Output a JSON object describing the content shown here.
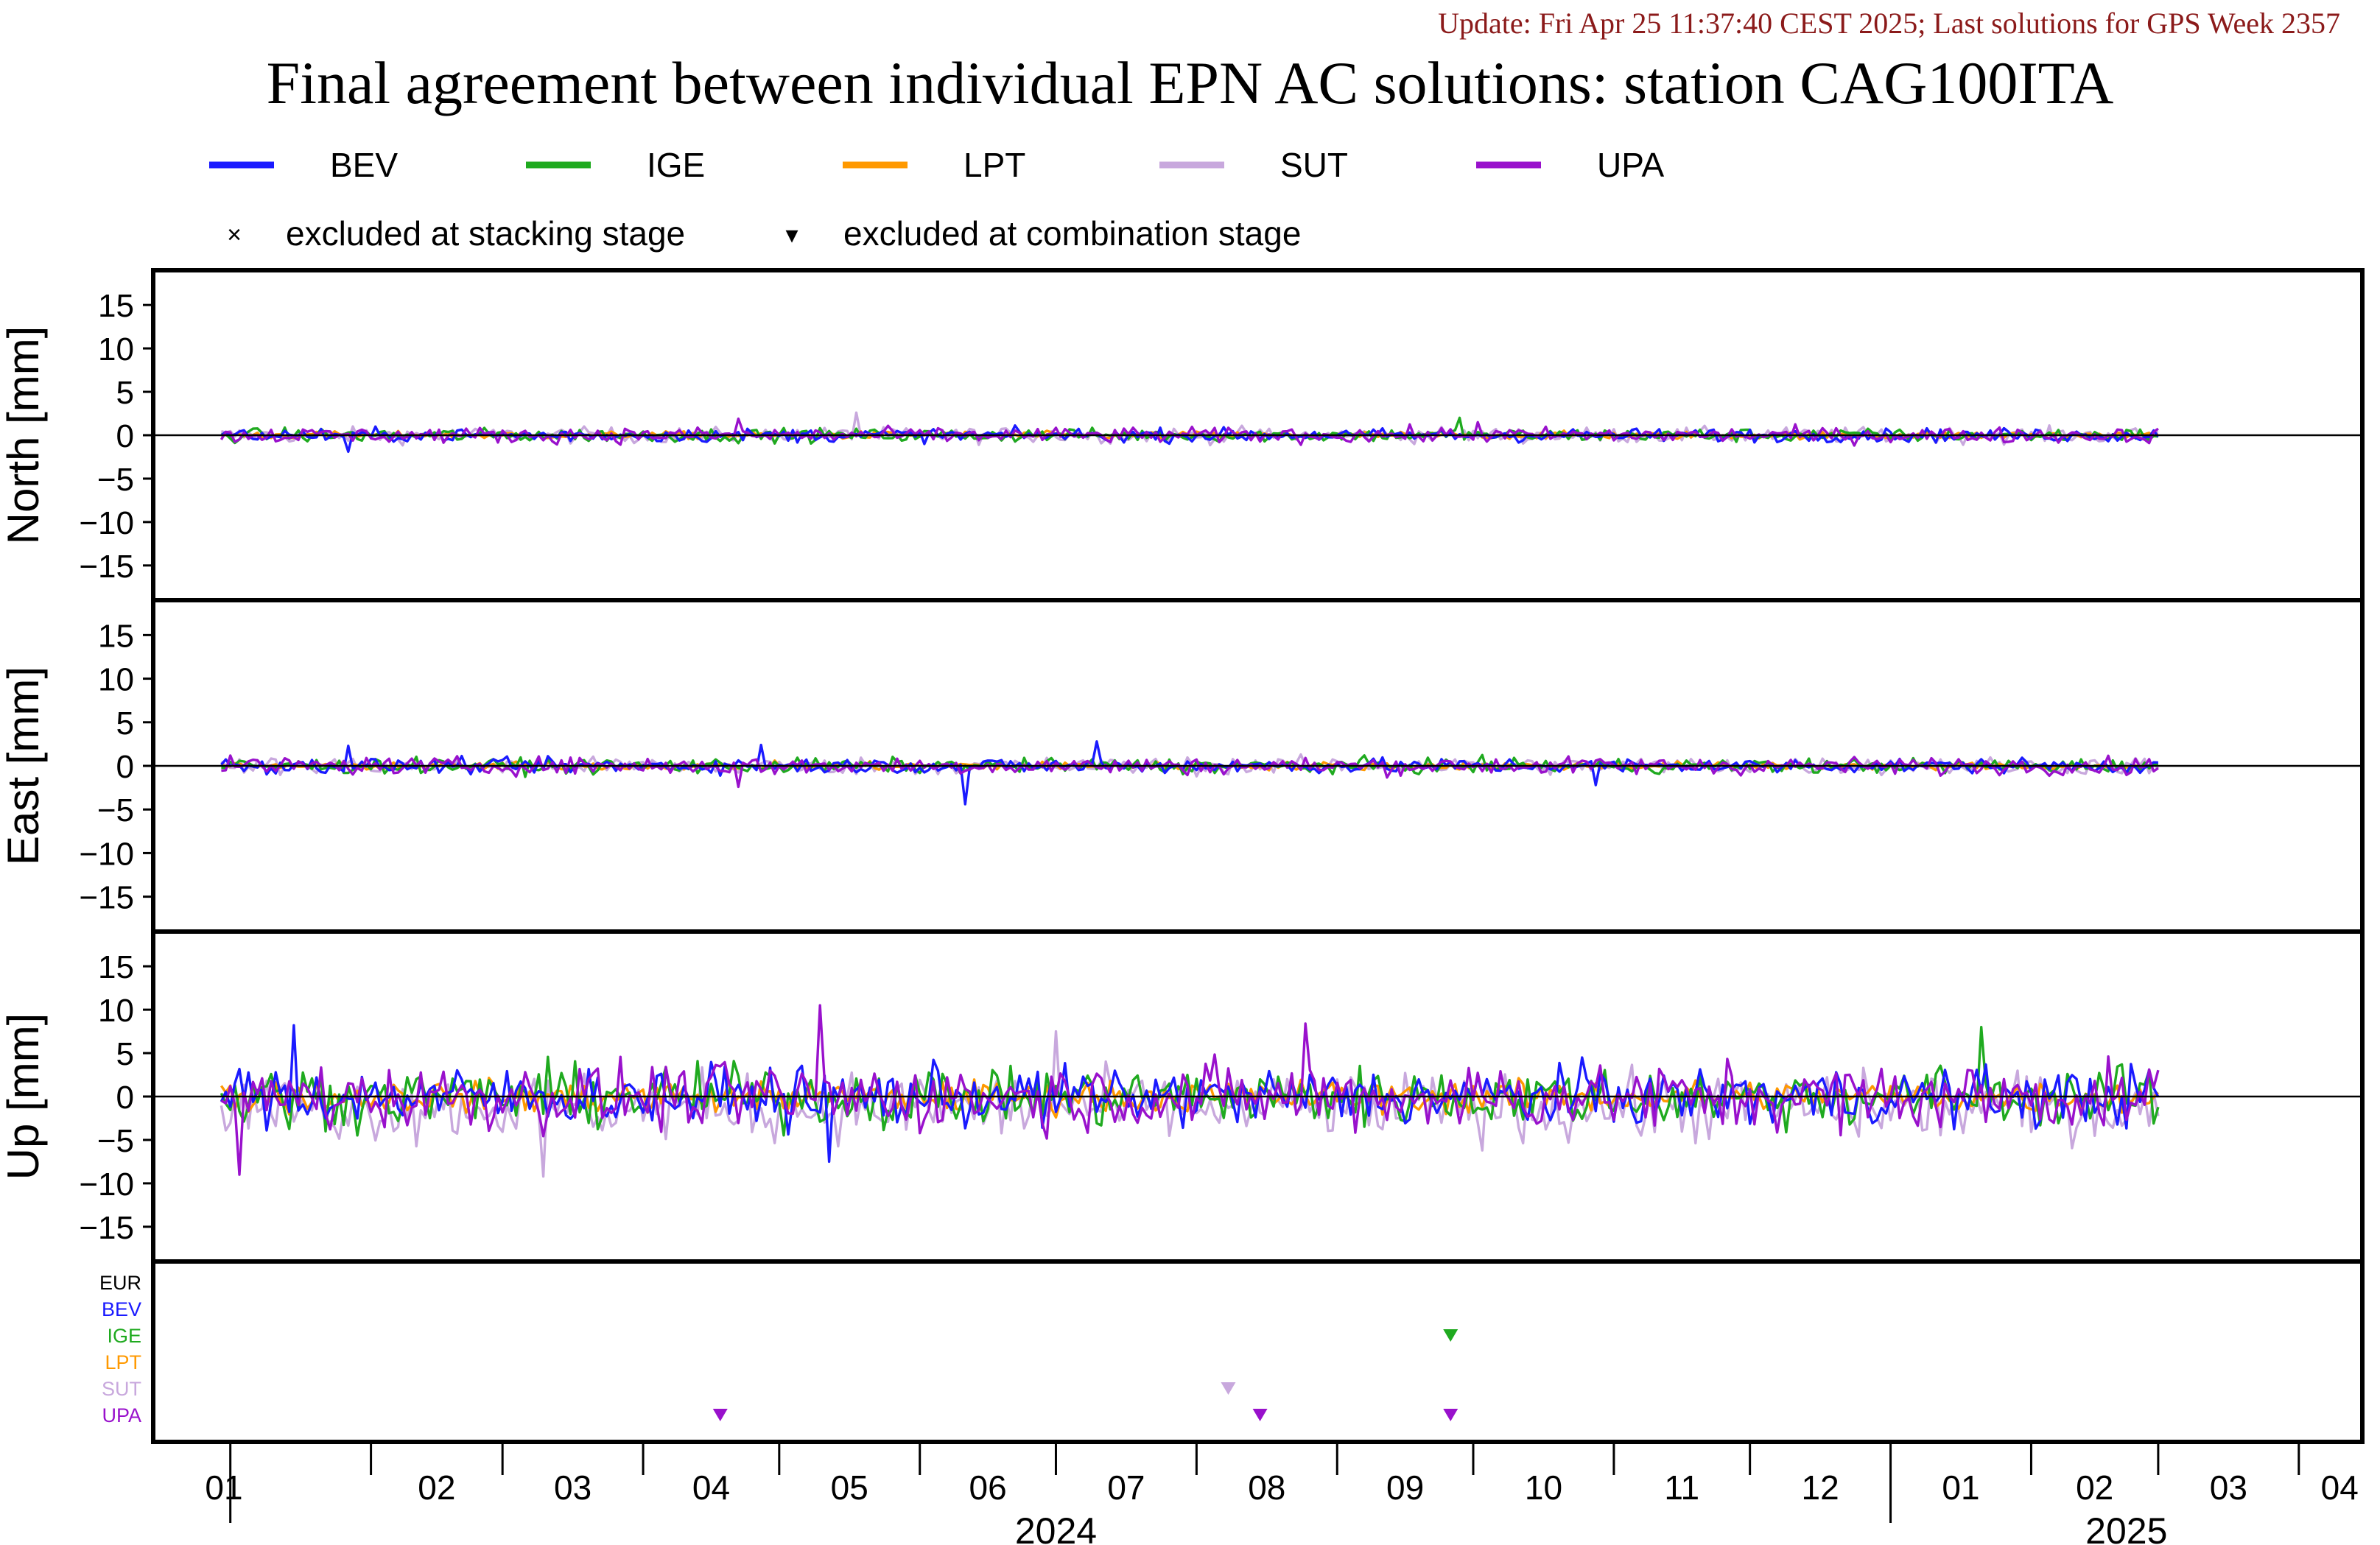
{
  "header": {
    "update": "Update: Fri Apr 25 11:37:40 CEST 2025; Last solutions for GPS Week 2357",
    "title": "Final agreement between individual EPN AC solutions: station CAG100ITA"
  },
  "legend": {
    "series": [
      {
        "name": "BEV",
        "color": "#1a1aff"
      },
      {
        "name": "IGE",
        "color": "#1faa1f"
      },
      {
        "name": "LPT",
        "color": "#ff9900"
      },
      {
        "name": "SUT",
        "color": "#c8a8dd"
      },
      {
        "name": "UPA",
        "color": "#9911cc"
      }
    ],
    "markers": [
      {
        "symbol": "×",
        "label": "excluded at stacking stage"
      },
      {
        "symbol": "▾",
        "label": "excluded at combination stage"
      }
    ]
  },
  "chart_data": {
    "type": "line",
    "x_axis": {
      "start": "2023-12-15",
      "end": "2025-04-15",
      "month_labels": [
        "01",
        "02",
        "03",
        "04",
        "05",
        "06",
        "07",
        "08",
        "09",
        "10",
        "11",
        "12",
        "01",
        "02",
        "03",
        "04"
      ],
      "year_labels": [
        "2024",
        "2025"
      ]
    },
    "panels": [
      {
        "id": "north",
        "ylabel": "North [mm]",
        "ylim": [
          -19,
          19
        ],
        "yticks": [
          15,
          10,
          5,
          0,
          -5,
          -10,
          -15
        ],
        "noise": 0.55,
        "spikes": [
          {
            "series": "BEV",
            "date": "2024-01-27",
            "value": -1.9
          },
          {
            "series": "UPA",
            "date": "2024-04-22",
            "value": 1.9
          },
          {
            "series": "SUT",
            "date": "2024-05-18",
            "value": 2.6
          },
          {
            "series": "IGE",
            "date": "2024-09-28",
            "value": 2.0
          },
          {
            "series": "UPA",
            "date": "2024-10-02",
            "value": 1.5
          }
        ]
      },
      {
        "id": "east",
        "ylabel": "East [mm]",
        "ylim": [
          -19,
          19
        ],
        "yticks": [
          15,
          10,
          5,
          0,
          -5,
          -10,
          -15
        ],
        "noise": 0.6,
        "spikes": [
          {
            "series": "BEV",
            "date": "2024-01-27",
            "value": 2.3
          },
          {
            "series": "BEV",
            "date": "2024-04-27",
            "value": 2.4
          },
          {
            "series": "BEV",
            "date": "2024-06-11",
            "value": -4.4
          },
          {
            "series": "BEV",
            "date": "2024-07-10",
            "value": 2.8
          },
          {
            "series": "UPA",
            "date": "2024-04-22",
            "value": -2.4
          },
          {
            "series": "BEV",
            "date": "2024-10-28",
            "value": -2.2
          }
        ]
      },
      {
        "id": "up",
        "ylabel": "Up [mm]",
        "ylim": [
          -19,
          19
        ],
        "yticks": [
          15,
          10,
          5,
          0,
          -5,
          -10,
          -15
        ],
        "noise": 2.4,
        "spikes": [
          {
            "series": "BEV",
            "date": "2024-01-15",
            "value": 8.2
          },
          {
            "series": "UPA",
            "date": "2024-01-03",
            "value": -9.0
          },
          {
            "series": "SUT",
            "date": "2024-03-10",
            "value": -9.2
          },
          {
            "series": "UPA",
            "date": "2024-05-10",
            "value": 10.5
          },
          {
            "series": "UPA",
            "date": "2024-08-25",
            "value": 8.4
          },
          {
            "series": "SUT",
            "date": "2024-07-01",
            "value": 7.5
          },
          {
            "series": "IGE",
            "date": "2025-01-21",
            "value": 8.0
          },
          {
            "series": "BEV",
            "date": "2024-05-12",
            "value": -7.5
          }
        ]
      }
    ],
    "exclusion_panel": {
      "rows": [
        {
          "name": "EUR",
          "color": "#000000"
        },
        {
          "name": "BEV",
          "color": "#1a1aff"
        },
        {
          "name": "IGE",
          "color": "#1faa1f"
        },
        {
          "name": "LPT",
          "color": "#ff9900"
        },
        {
          "name": "SUT",
          "color": "#c8a8dd"
        },
        {
          "name": "UPA",
          "color": "#9911cc"
        }
      ],
      "markers": [
        {
          "series": "IGE",
          "date": "2024-09-26",
          "type": "combination"
        },
        {
          "series": "SUT",
          "date": "2024-08-08",
          "type": "combination"
        },
        {
          "series": "UPA",
          "date": "2024-04-18",
          "type": "combination"
        },
        {
          "series": "UPA",
          "date": "2024-08-15",
          "type": "combination"
        },
        {
          "series": "UPA",
          "date": "2024-09-26",
          "type": "combination"
        }
      ]
    },
    "data_end": "2025-03-01"
  }
}
